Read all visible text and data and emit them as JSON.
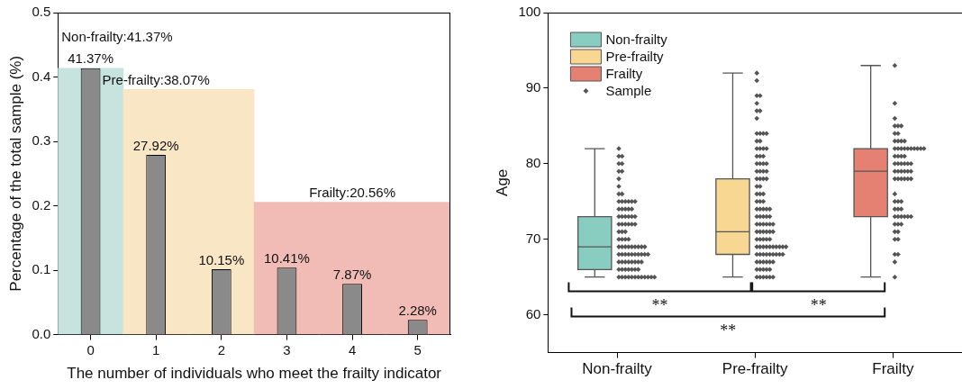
{
  "chart_data": [
    {
      "type": "bar",
      "categories": [
        "0",
        "1",
        "2",
        "3",
        "4",
        "5"
      ],
      "series": [
        {
          "colors": [
            "#c6e3dd",
            "#f8e6c5",
            "#f8e6c5",
            "#f0bcb5",
            "#f0bcb5",
            "#f0bcb5"
          ],
          "values": [
            0.4137,
            0.3807,
            0.3807,
            0.2056,
            0.2056,
            0.2056
          ],
          "value_labels": [
            "Non-frailty:41.37%",
            "Pre-frailty:38.07%",
            null,
            null,
            "Frailty:20.56%",
            null
          ]
        },
        {
          "color": "#8a8a8a",
          "values": [
            0.4137,
            0.2792,
            0.1015,
            0.1041,
            0.0787,
            0.0228
          ],
          "value_labels": [
            "41.37%",
            "27.92%",
            "10.15%",
            "10.41%",
            "7.87%",
            "2.28%"
          ]
        }
      ],
      "xlabel": "The number of individuals who meet the frailty indicator",
      "ylabel": "Percentage of the total sample (%)",
      "ylim": [
        0,
        0.5
      ],
      "yticks": [
        {
          "value": 0,
          "label": "0.0"
        },
        0.1,
        0.2,
        0.3,
        0.4,
        0.5
      ]
    },
    {
      "type": "box",
      "categories": [
        "Non-frailty",
        "Pre-frailty",
        "Frailty"
      ],
      "ylabel": "Age",
      "ylim": [
        55,
        100
      ],
      "yticks": [
        60,
        70,
        80,
        90,
        100
      ],
      "legend": "top left",
      "annotations": [
        "**",
        "**",
        "**"
      ],
      "series": [
        {
          "name": "Non-frailty",
          "color": "#88cdbf",
          "boxes": [
            {
              "low": 65,
              "q1": 66,
              "median": 69,
              "q3": 73,
              "high": 82
            },
            null,
            null
          ]
        },
        {
          "name": "Pre-frailty",
          "color": "#f7d792",
          "boxes": [
            null,
            {
              "low": 65,
              "q1": 68,
              "median": 71,
              "q3": 78,
              "high": 92
            },
            null
          ]
        },
        {
          "name": "Frailty",
          "color": "#e58173",
          "boxes": [
            null,
            null,
            {
              "low": 65,
              "q1": 73,
              "median": 79,
              "q3": 82,
              "high": 93
            }
          ]
        },
        {
          "name": "Sample",
          "type": "scatter",
          "marker": "diamond",
          "color": "#555555",
          "x": [
            "Non-frailty",
            "Non-frailty",
            "Non-frailty",
            "Non-frailty",
            "Non-frailty",
            "Non-frailty",
            "Non-frailty",
            "Non-frailty",
            "Non-frailty",
            "Non-frailty",
            "Non-frailty",
            "Non-frailty",
            "Non-frailty",
            "Non-frailty",
            "Non-frailty",
            "Non-frailty",
            "Non-frailty",
            "Non-frailty",
            "Non-frailty",
            "Non-frailty",
            "Non-frailty",
            "Non-frailty",
            "Non-frailty",
            "Non-frailty",
            "Non-frailty",
            "Non-frailty",
            "Non-frailty",
            "Non-frailty",
            "Non-frailty",
            "Non-frailty",
            "Non-frailty",
            "Non-frailty",
            "Non-frailty",
            "Non-frailty",
            "Non-frailty",
            "Non-frailty",
            "Non-frailty",
            "Non-frailty",
            "Non-frailty",
            "Non-frailty",
            "Non-frailty",
            "Non-frailty",
            "Non-frailty",
            "Non-frailty",
            "Non-frailty",
            "Non-frailty",
            "Non-frailty",
            "Non-frailty",
            "Non-frailty",
            "Non-frailty",
            "Non-frailty",
            "Non-frailty",
            "Non-frailty",
            "Non-frailty",
            "Non-frailty",
            "Non-frailty",
            "Non-frailty",
            "Non-frailty",
            "Non-frailty",
            "Non-frailty",
            "Non-frailty",
            "Non-frailty",
            "Non-frailty",
            "Non-frailty",
            "Non-frailty",
            "Non-frailty",
            "Non-frailty",
            "Non-frailty",
            "Non-frailty",
            "Non-frailty",
            "Non-frailty",
            "Non-frailty",
            "Non-frailty",
            "Non-frailty",
            "Non-frailty",
            "Non-frailty",
            "Non-frailty",
            "Non-frailty",
            "Non-frailty",
            "Non-frailty",
            "Non-frailty",
            "Non-frailty",
            "Non-frailty",
            "Non-frailty",
            "Non-frailty",
            "Non-frailty",
            "Non-frailty",
            "Pre-frailty",
            "Pre-frailty",
            "Pre-frailty",
            "Pre-frailty",
            "Pre-frailty",
            "Pre-frailty",
            "Pre-frailty",
            "Pre-frailty",
            "Pre-frailty",
            "Pre-frailty",
            "Pre-frailty",
            "Pre-frailty",
            "Pre-frailty",
            "Pre-frailty",
            "Pre-frailty",
            "Pre-frailty",
            "Pre-frailty",
            "Pre-frailty",
            "Pre-frailty",
            "Pre-frailty",
            "Pre-frailty",
            "Pre-frailty",
            "Pre-frailty",
            "Pre-frailty",
            "Pre-frailty",
            "Pre-frailty",
            "Pre-frailty",
            "Pre-frailty",
            "Pre-frailty",
            "Pre-frailty",
            "Pre-frailty",
            "Pre-frailty",
            "Pre-frailty",
            "Pre-frailty",
            "Pre-frailty",
            "Pre-frailty",
            "Pre-frailty",
            "Pre-frailty",
            "Pre-frailty",
            "Pre-frailty",
            "Pre-frailty",
            "Pre-frailty",
            "Pre-frailty",
            "Pre-frailty",
            "Pre-frailty",
            "Pre-frailty",
            "Pre-frailty",
            "Pre-frailty",
            "Pre-frailty",
            "Pre-frailty",
            "Pre-frailty",
            "Pre-frailty",
            "Pre-frailty",
            "Pre-frailty",
            "Pre-frailty",
            "Pre-frailty",
            "Pre-frailty",
            "Pre-frailty",
            "Pre-frailty",
            "Pre-frailty",
            "Pre-frailty",
            "Pre-frailty",
            "Pre-frailty",
            "Pre-frailty",
            "Pre-frailty",
            "Pre-frailty",
            "Pre-frailty",
            "Pre-frailty",
            "Pre-frailty",
            "Pre-frailty",
            "Pre-frailty",
            "Pre-frailty",
            "Pre-frailty",
            "Pre-frailty",
            "Pre-frailty",
            "Pre-frailty",
            "Pre-frailty",
            "Pre-frailty",
            "Pre-frailty",
            "Pre-frailty",
            "Pre-frailty",
            "Pre-frailty",
            "Pre-frailty",
            "Pre-frailty",
            "Pre-frailty",
            "Pre-frailty",
            "Pre-frailty",
            "Pre-frailty",
            "Pre-frailty",
            "Pre-frailty",
            "Pre-frailty",
            "Pre-frailty",
            "Pre-frailty",
            "Pre-frailty",
            "Pre-frailty",
            "Pre-frailty",
            "Pre-frailty",
            "Pre-frailty",
            "Pre-frailty",
            "Pre-frailty",
            "Pre-frailty",
            "Pre-frailty",
            "Pre-frailty",
            "Pre-frailty",
            "Frailty",
            "Frailty",
            "Frailty",
            "Frailty",
            "Frailty",
            "Frailty",
            "Frailty",
            "Frailty",
            "Frailty",
            "Frailty",
            "Frailty",
            "Frailty",
            "Frailty",
            "Frailty",
            "Frailty",
            "Frailty",
            "Frailty",
            "Frailty",
            "Frailty",
            "Frailty",
            "Frailty",
            "Frailty",
            "Frailty",
            "Frailty",
            "Frailty",
            "Frailty",
            "Frailty",
            "Frailty",
            "Frailty",
            "Frailty",
            "Frailty",
            "Frailty",
            "Frailty",
            "Frailty",
            "Frailty",
            "Frailty",
            "Frailty",
            "Frailty",
            "Frailty",
            "Frailty",
            "Frailty",
            "Frailty",
            "Frailty",
            "Frailty",
            "Frailty",
            "Frailty",
            "Frailty",
            "Frailty",
            "Frailty",
            "Frailty",
            "Frailty",
            "Frailty",
            "Frailty",
            "Frailty",
            "Frailty",
            "Frailty",
            "Frailty",
            "Frailty",
            "Frailty",
            "Frailty",
            "Frailty",
            "Frailty",
            "Frailty",
            "Frailty",
            "Frailty",
            "Frailty",
            "Frailty",
            "Frailty"
          ],
          "values": [
            65,
            65,
            65,
            65,
            65,
            65,
            65,
            65,
            65,
            65,
            65,
            65,
            66,
            66,
            66,
            66,
            66,
            66,
            66,
            67,
            67,
            67,
            67,
            67,
            67,
            67,
            67,
            68,
            68,
            68,
            68,
            68,
            68,
            68,
            68,
            68,
            68,
            69,
            69,
            69,
            69,
            69,
            69,
            69,
            69,
            69,
            70,
            70,
            70,
            70,
            71,
            71,
            71,
            72,
            72,
            72,
            72,
            72,
            72,
            73,
            73,
            73,
            73,
            73,
            73,
            74,
            74,
            74,
            74,
            74,
            75,
            75,
            75,
            75,
            75,
            75,
            76,
            76,
            77,
            78,
            79,
            79,
            80,
            80,
            81,
            81,
            82,
            65,
            65,
            65,
            65,
            65,
            65,
            66,
            66,
            66,
            66,
            66,
            67,
            67,
            67,
            67,
            67,
            67,
            68,
            68,
            68,
            68,
            68,
            68,
            68,
            68,
            68,
            69,
            69,
            69,
            69,
            69,
            69,
            69,
            69,
            69,
            69,
            70,
            70,
            70,
            70,
            70,
            71,
            71,
            71,
            71,
            71,
            71,
            72,
            72,
            72,
            72,
            72,
            72,
            73,
            73,
            73,
            73,
            73,
            74,
            74,
            74,
            74,
            74,
            75,
            75,
            75,
            76,
            76,
            76,
            77,
            77,
            78,
            78,
            78,
            78,
            79,
            79,
            79,
            79,
            80,
            80,
            80,
            80,
            81,
            81,
            81,
            82,
            82,
            82,
            82,
            83,
            83,
            84,
            84,
            84,
            84,
            86,
            87,
            87,
            88,
            89,
            89,
            91,
            92,
            65,
            67,
            68,
            68,
            70,
            70,
            71,
            71,
            72,
            72,
            72,
            73,
            73,
            73,
            73,
            73,
            73,
            74,
            74,
            74,
            75,
            75,
            75,
            76,
            78,
            78,
            78,
            78,
            78,
            78,
            79,
            79,
            79,
            79,
            79,
            79,
            80,
            80,
            80,
            80,
            80,
            80,
            81,
            81,
            81,
            81,
            82,
            82,
            82,
            82,
            82,
            82,
            82,
            82,
            82,
            82,
            83,
            83,
            83,
            83,
            84,
            84,
            85,
            85,
            85,
            86,
            88,
            93
          ]
        }
      ]
    }
  ]
}
